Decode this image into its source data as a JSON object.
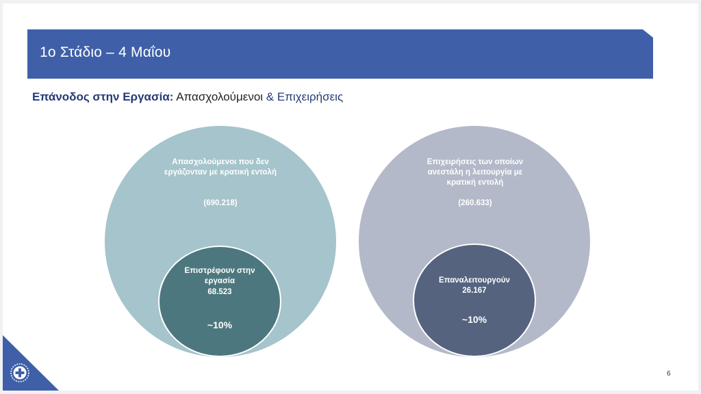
{
  "slide": {
    "title": "1ο Στάδιο – 4 Μαΐου",
    "subtitle": {
      "part1": "Επάνοδος στην Εργασία:",
      "part2": " Απασχολούμενοι ",
      "part3": "& Επιχειρήσεις"
    },
    "page_number": "6"
  },
  "circles": {
    "left": {
      "outer_label": "Απασχολούμενοι που δεν εργάζονταν με κρατική εντολή",
      "outer_value": "(690.218)",
      "inner_label": "Επιστρέφουν στην εργασία",
      "inner_value": "68.523",
      "inner_percent": "~10%"
    },
    "right": {
      "outer_label": "Επιχειρήσεις των οποίων ανεστάλη η λειτουργία με κρατική εντολή",
      "outer_value": "(260.633)",
      "inner_label": "Επαναλειτουργούν",
      "inner_value": "26.167",
      "inner_percent": "~10%"
    }
  },
  "colors": {
    "banner": "#3f60a8",
    "left_outer": "#a5c4cb",
    "left_inner": "#4d777e",
    "right_outer": "#b3b9c8",
    "right_inner": "#55637f"
  },
  "icons": {
    "corner_emblem": "greek-cross-emblem-icon"
  }
}
